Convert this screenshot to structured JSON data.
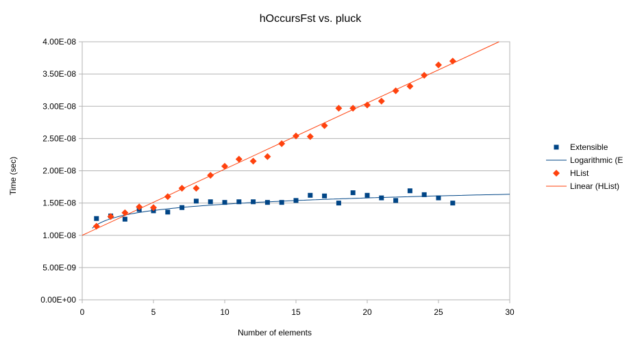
{
  "chart_data": {
    "type": "scatter",
    "title": "hOccursFst vs. pluck",
    "xlabel": "Number of elements",
    "ylabel": "Time (sec)",
    "xlim": [
      0,
      30
    ],
    "ylim": [
      0,
      4e-08
    ],
    "x_ticks": [
      0,
      5,
      10,
      15,
      20,
      25,
      30
    ],
    "x_tick_labels": [
      "0",
      "5",
      "10",
      "15",
      "20",
      "25",
      "30"
    ],
    "y_ticks": [
      0,
      5e-09,
      1e-08,
      1.5e-08,
      2e-08,
      2.5e-08,
      3e-08,
      3.5e-08,
      4e-08
    ],
    "y_tick_labels": [
      "0.00E+00",
      "5.00E-09",
      "1.00E-08",
      "1.50E-08",
      "2.00E-08",
      "2.50E-08",
      "3.00E-08",
      "3.50E-08",
      "4.00E-08"
    ],
    "grid": true,
    "legend_position": "right",
    "series": [
      {
        "name": "Extensible",
        "kind": "points",
        "marker": "square",
        "color": "#004586",
        "x": [
          1,
          2,
          3,
          4,
          5,
          6,
          7,
          8,
          9,
          10,
          11,
          12,
          13,
          14,
          15,
          16,
          17,
          18,
          19,
          20,
          21,
          22,
          23,
          24,
          25,
          26
        ],
        "y": [
          1.26e-08,
          1.3e-08,
          1.25e-08,
          1.4e-08,
          1.38e-08,
          1.36e-08,
          1.43e-08,
          1.53e-08,
          1.52e-08,
          1.51e-08,
          1.52e-08,
          1.52e-08,
          1.51e-08,
          1.51e-08,
          1.54e-08,
          1.62e-08,
          1.61e-08,
          1.5e-08,
          1.66e-08,
          1.62e-08,
          1.58e-08,
          1.54e-08,
          1.69e-08,
          1.63e-08,
          1.58e-08,
          1.5e-08
        ]
      },
      {
        "name": "Logarithmic (E",
        "kind": "trend-log",
        "color": "#004586",
        "a": 1.16e-08,
        "b": 1.4e-09,
        "x_range": [
          0.7,
          30
        ]
      },
      {
        "name": "HList",
        "kind": "points",
        "marker": "diamond",
        "color": "#ff420e",
        "x": [
          1,
          2,
          3,
          4,
          5,
          6,
          7,
          8,
          9,
          10,
          11,
          12,
          13,
          14,
          15,
          16,
          17,
          18,
          19,
          20,
          21,
          22,
          23,
          24,
          25,
          26
        ],
        "y": [
          1.14e-08,
          1.29e-08,
          1.35e-08,
          1.44e-08,
          1.43e-08,
          1.6e-08,
          1.73e-08,
          1.73e-08,
          1.93e-08,
          2.07e-08,
          2.18e-08,
          2.15e-08,
          2.22e-08,
          2.42e-08,
          2.54e-08,
          2.53e-08,
          2.7e-08,
          2.97e-08,
          2.97e-08,
          3.02e-08,
          3.08e-08,
          3.24e-08,
          3.31e-08,
          3.48e-08,
          3.64e-08,
          3.7e-08
        ]
      },
      {
        "name": "Linear (HList)",
        "kind": "trend-linear",
        "color": "#ff420e",
        "intercept": 1e-08,
        "slope": 1.0256e-09,
        "x_range": [
          0,
          30
        ]
      }
    ]
  }
}
